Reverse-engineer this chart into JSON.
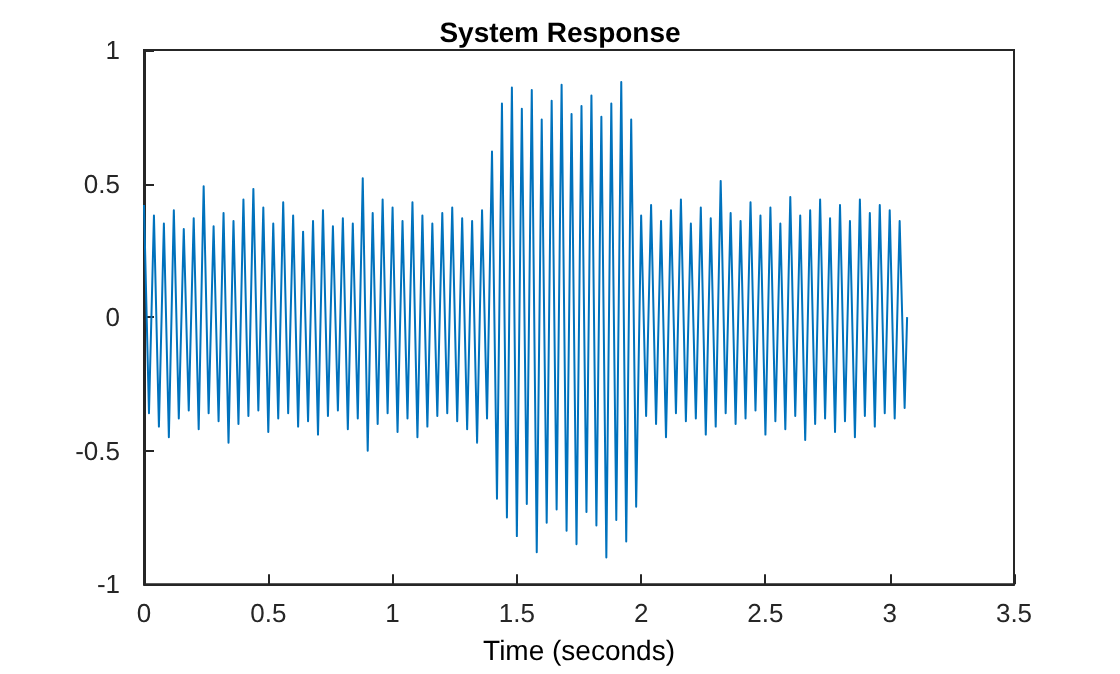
{
  "chart_data": {
    "type": "line",
    "title": "System Response",
    "xlabel": "Time (seconds)",
    "x": [
      0,
      0.02,
      0.04,
      0.06,
      0.08,
      0.1,
      0.12,
      0.14,
      0.16,
      0.18,
      0.2,
      0.22,
      0.24,
      0.26,
      0.28,
      0.3,
      0.32,
      0.34,
      0.36,
      0.38,
      0.4,
      0.42,
      0.44,
      0.46,
      0.48,
      0.5,
      0.52,
      0.54,
      0.56,
      0.58,
      0.6,
      0.62,
      0.64,
      0.66,
      0.68,
      0.7,
      0.72,
      0.74,
      0.76,
      0.78,
      0.8,
      0.82,
      0.84,
      0.86,
      0.88,
      0.9,
      0.92,
      0.94,
      0.96,
      0.98,
      1,
      1.02,
      1.04,
      1.06,
      1.08,
      1.1,
      1.12,
      1.14,
      1.16,
      1.18,
      1.2,
      1.22,
      1.24,
      1.26,
      1.28,
      1.3,
      1.32,
      1.34,
      1.36,
      1.38,
      1.4,
      1.42,
      1.44,
      1.46,
      1.48,
      1.5,
      1.52,
      1.54,
      1.56,
      1.58,
      1.6,
      1.62,
      1.64,
      1.66,
      1.68,
      1.7,
      1.72,
      1.74,
      1.76,
      1.78,
      1.8,
      1.82,
      1.84,
      1.86,
      1.88,
      1.9,
      1.92,
      1.94,
      1.96,
      1.98,
      2,
      2.02,
      2.04,
      2.06,
      2.08,
      2.1,
      2.12,
      2.14,
      2.16,
      2.18,
      2.2,
      2.22,
      2.24,
      2.26,
      2.28,
      2.3,
      2.32,
      2.34,
      2.36,
      2.38,
      2.4,
      2.42,
      2.44,
      2.46,
      2.48,
      2.5,
      2.52,
      2.54,
      2.56,
      2.58,
      2.6,
      2.62,
      2.64,
      2.66,
      2.68,
      2.7,
      2.72,
      2.74,
      2.76,
      2.78,
      2.8,
      2.82,
      2.84,
      2.86,
      2.88,
      2.9,
      2.92,
      2.94,
      2.96,
      2.98,
      3,
      3.02,
      3.04,
      3.06,
      3.07
    ],
    "series": [
      {
        "color": "#0072bd",
        "values": [
          0.42,
          -0.36,
          0.38,
          -0.41,
          0.35,
          -0.45,
          0.4,
          -0.38,
          0.33,
          -0.35,
          0.37,
          -0.42,
          0.49,
          -0.36,
          0.34,
          -0.39,
          0.39,
          -0.47,
          0.36,
          -0.4,
          0.44,
          -0.37,
          0.48,
          -0.35,
          0.41,
          -0.43,
          0.35,
          -0.38,
          0.43,
          -0.36,
          0.38,
          -0.41,
          0.32,
          -0.39,
          0.36,
          -0.44,
          0.4,
          -0.37,
          0.34,
          -0.35,
          0.37,
          -0.42,
          0.35,
          -0.38,
          0.52,
          -0.5,
          0.39,
          -0.4,
          0.44,
          -0.36,
          0.41,
          -0.43,
          0.36,
          -0.38,
          0.43,
          -0.45,
          0.38,
          -0.41,
          0.35,
          -0.37,
          0.39,
          -0.36,
          0.41,
          -0.39,
          0.37,
          -0.42,
          0.36,
          -0.47,
          0.4,
          -0.38,
          0.62,
          -0.68,
          0.8,
          -0.75,
          0.86,
          -0.82,
          0.78,
          -0.7,
          0.85,
          -0.88,
          0.74,
          -0.77,
          0.81,
          -0.72,
          0.87,
          -0.8,
          0.76,
          -0.85,
          0.79,
          -0.73,
          0.83,
          -0.78,
          0.75,
          -0.9,
          0.8,
          -0.76,
          0.88,
          -0.84,
          0.74,
          -0.71,
          0.38,
          -0.37,
          0.42,
          -0.4,
          0.36,
          -0.45,
          0.4,
          -0.36,
          0.44,
          -0.39,
          0.35,
          -0.38,
          0.41,
          -0.44,
          0.37,
          -0.41,
          0.51,
          -0.36,
          0.39,
          -0.4,
          0.36,
          -0.38,
          0.43,
          -0.35,
          0.38,
          -0.44,
          0.41,
          -0.39,
          0.35,
          -0.42,
          0.45,
          -0.37,
          0.38,
          -0.46,
          0.4,
          -0.4,
          0.44,
          -0.38,
          0.37,
          -0.43,
          0.42,
          -0.39,
          0.36,
          -0.45,
          0.44,
          -0.37,
          0.39,
          -0.41,
          0.42,
          -0.36,
          0.4,
          -0.38,
          0.36,
          -0.34,
          0
        ]
      }
    ],
    "xlim": [
      0,
      3.5
    ],
    "xticks": [
      0,
      0.5,
      1,
      1.5,
      2,
      2.5,
      3,
      3.5
    ],
    "ylim": [
      -1,
      1
    ],
    "yticks": [
      -1,
      -0.5,
      0,
      0.5,
      1
    ]
  }
}
